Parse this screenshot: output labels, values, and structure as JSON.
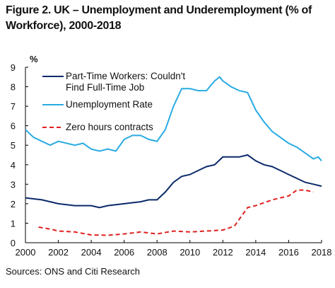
{
  "chart_data": {
    "type": "line",
    "title": "Figure 2. UK – Unemployment and Underemployment (% of Workforce), 2000-2018",
    "y_label": "%",
    "source": "Sources: ONS and Citi Research",
    "xlim": [
      2000,
      2018
    ],
    "xticks": [
      2000,
      2002,
      2004,
      2006,
      2008,
      2010,
      2012,
      2014,
      2016,
      2018
    ],
    "ylim": [
      0,
      9
    ],
    "yticks": [
      0,
      1,
      2,
      3,
      4,
      5,
      6,
      7,
      8,
      9
    ],
    "series": [
      {
        "name": "Part-Time Workers: Couldn't Find Full-Time Job",
        "color": "#0b2a6b",
        "dashed": false,
        "x": [
          2000,
          2001,
          2001.5,
          2002,
          2003,
          2004,
          2004.5,
          2005,
          2006,
          2007,
          2007.5,
          2008,
          2008.5,
          2009,
          2009.5,
          2010,
          2010.5,
          2011,
          2011.5,
          2012,
          2012.5,
          2013,
          2013.5,
          2014,
          2014.5,
          2015,
          2015.5,
          2016,
          2016.5,
          2017,
          2017.5,
          2018
        ],
        "values": [
          2.3,
          2.2,
          2.1,
          2.0,
          1.9,
          1.9,
          1.8,
          1.9,
          2.0,
          2.1,
          2.2,
          2.2,
          2.6,
          3.1,
          3.4,
          3.5,
          3.7,
          3.9,
          4.0,
          4.4,
          4.4,
          4.4,
          4.5,
          4.2,
          4.0,
          3.9,
          3.7,
          3.5,
          3.3,
          3.1,
          3.0,
          2.9
        ]
      },
      {
        "name": "Unemployment Rate",
        "color": "#29abe2",
        "dashed": false,
        "x": [
          2000,
          2000.5,
          2001,
          2001.5,
          2002,
          2003,
          2003.5,
          2004,
          2004.5,
          2005,
          2005.5,
          2006,
          2006.5,
          2007,
          2007.5,
          2008,
          2008.5,
          2009,
          2009.5,
          2010,
          2010.5,
          2011,
          2011.5,
          2011.8,
          2012,
          2012.5,
          2013,
          2013.5,
          2014,
          2014.5,
          2015,
          2015.5,
          2016,
          2016.5,
          2017,
          2017.5,
          2017.8,
          2018
        ],
        "values": [
          5.8,
          5.4,
          5.2,
          5.0,
          5.2,
          5.0,
          5.1,
          4.8,
          4.7,
          4.8,
          4.7,
          5.3,
          5.5,
          5.5,
          5.3,
          5.2,
          5.8,
          7.0,
          7.9,
          7.9,
          7.8,
          7.8,
          8.3,
          8.5,
          8.3,
          8.0,
          7.8,
          7.7,
          6.8,
          6.2,
          5.7,
          5.4,
          5.1,
          4.9,
          4.6,
          4.3,
          4.4,
          4.2
        ]
      },
      {
        "name": "Zero hours contracts",
        "color": "#e02020",
        "dashed": true,
        "x": [
          2000.8,
          2001.5,
          2002,
          2003,
          2004,
          2005,
          2006,
          2007,
          2008,
          2009,
          2010,
          2011,
          2012,
          2012.7,
          2013.5,
          2014,
          2015,
          2016,
          2016.5,
          2017,
          2017.5
        ],
        "values": [
          0.8,
          0.7,
          0.6,
          0.55,
          0.4,
          0.38,
          0.45,
          0.55,
          0.45,
          0.6,
          0.55,
          0.6,
          0.65,
          0.85,
          1.8,
          1.9,
          2.2,
          2.4,
          2.7,
          2.7,
          2.6
        ]
      }
    ]
  }
}
